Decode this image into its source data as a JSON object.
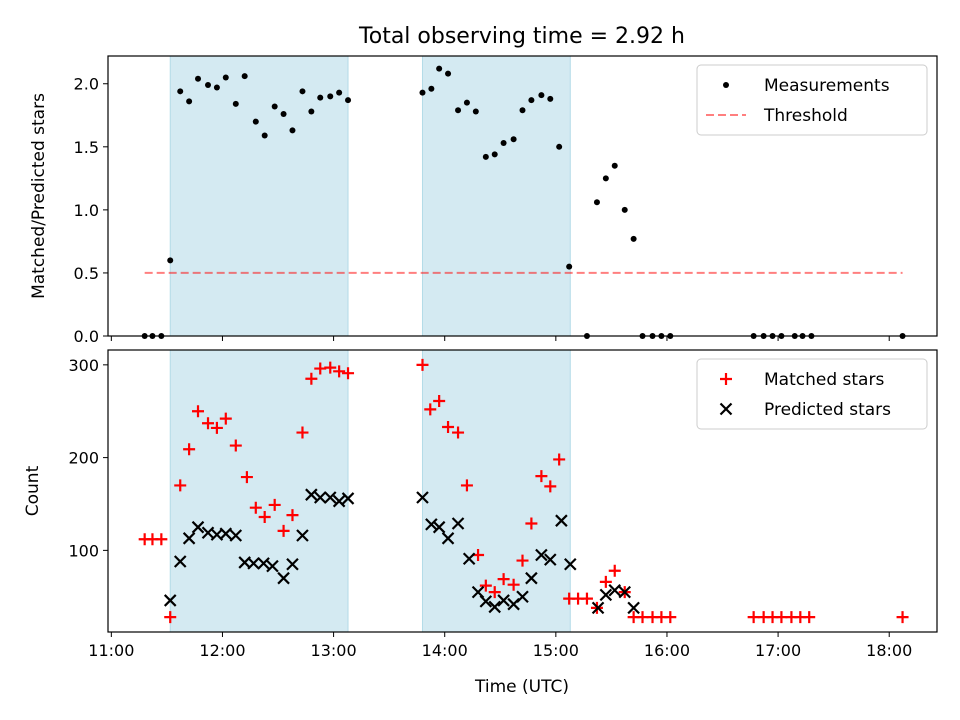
{
  "title": "Total observing time = 2.92 h",
  "xlabel": "Time (UTC)",
  "colors": {
    "span": "#add8e6",
    "measurements": "#000000",
    "threshold": "#ff0000",
    "matched": "#ff0000",
    "predicted": "#000000"
  },
  "chart_data": [
    {
      "type": "scatter",
      "ylabel": "Matched/Predicted stars",
      "ylim": [
        0,
        2.22
      ],
      "yticks": [
        0.0,
        0.5,
        1.0,
        1.5,
        2.0
      ],
      "ytick_labels": [
        "0.0",
        "0.5",
        "1.0",
        "1.5",
        "2.0"
      ],
      "xlim_hours": [
        10.97,
        18.43
      ],
      "xticks_hours": [
        11,
        12,
        13,
        14,
        15,
        16,
        17,
        18
      ],
      "xtick_labels": [
        "11:00",
        "12:00",
        "13:00",
        "14:00",
        "15:00",
        "16:00",
        "17:00",
        "18:00"
      ],
      "show_xtick_labels": false,
      "legend": "upper right",
      "highlight_spans_hours": [
        [
          11.53,
          13.13
        ],
        [
          13.8,
          15.13
        ]
      ],
      "threshold": {
        "name": "Threshold",
        "value": 0.5,
        "x_range_hours": [
          11.3,
          18.12
        ],
        "style": "dashed"
      },
      "series": [
        {
          "name": "Measurements",
          "marker": "dot",
          "x": [
            11.3,
            11.37,
            11.45,
            11.53,
            11.62,
            11.7,
            11.78,
            11.87,
            11.95,
            12.03,
            12.12,
            12.2,
            12.3,
            12.38,
            12.47,
            12.55,
            12.63,
            12.72,
            12.8,
            12.88,
            12.97,
            13.05,
            13.13,
            13.8,
            13.88,
            13.95,
            14.03,
            14.12,
            14.2,
            14.28,
            14.37,
            14.45,
            14.53,
            14.62,
            14.7,
            14.78,
            14.87,
            14.95,
            15.03,
            15.12,
            15.28,
            15.37,
            15.45,
            15.53,
            15.62,
            15.7,
            15.78,
            15.87,
            15.95,
            16.03,
            16.78,
            16.87,
            16.95,
            17.03,
            17.15,
            17.22,
            17.3,
            18.12
          ],
          "y": [
            0,
            0,
            0,
            0.6,
            1.94,
            1.86,
            2.04,
            1.99,
            1.97,
            2.05,
            1.84,
            2.06,
            1.7,
            1.59,
            1.82,
            1.76,
            1.63,
            1.94,
            1.78,
            1.89,
            1.9,
            1.93,
            1.87,
            1.93,
            1.96,
            2.12,
            2.08,
            1.79,
            1.85,
            1.78,
            1.42,
            1.44,
            1.53,
            1.56,
            1.79,
            1.87,
            1.91,
            1.88,
            1.5,
            0.55,
            0,
            1.06,
            1.25,
            1.35,
            1.0,
            0.77,
            0,
            0,
            0,
            0,
            0,
            0,
            0,
            0,
            0,
            0,
            0,
            0
          ]
        }
      ]
    },
    {
      "type": "scatter",
      "ylabel": "Count",
      "ylim": [
        12,
        316
      ],
      "yticks": [
        100,
        200,
        300
      ],
      "ytick_labels": [
        "100",
        "200",
        "300"
      ],
      "xlim_hours": [
        10.97,
        18.43
      ],
      "xticks_hours": [
        11,
        12,
        13,
        14,
        15,
        16,
        17,
        18
      ],
      "xtick_labels": [
        "11:00",
        "12:00",
        "13:00",
        "14:00",
        "15:00",
        "16:00",
        "17:00",
        "18:00"
      ],
      "show_xtick_labels": true,
      "legend": "upper right",
      "highlight_spans_hours": [
        [
          11.53,
          13.13
        ],
        [
          13.8,
          15.13
        ]
      ],
      "series": [
        {
          "name": "Matched stars",
          "marker": "plus",
          "x": [
            11.3,
            11.37,
            11.45,
            11.53,
            11.62,
            11.7,
            11.78,
            11.87,
            11.95,
            12.03,
            12.12,
            12.22,
            12.3,
            12.38,
            12.47,
            12.55,
            12.63,
            12.72,
            12.8,
            12.88,
            12.97,
            13.05,
            13.13,
            13.8,
            13.87,
            13.95,
            14.03,
            14.12,
            14.2,
            14.3,
            14.37,
            14.45,
            14.53,
            14.62,
            14.7,
            14.78,
            14.87,
            14.95,
            15.03,
            15.12,
            15.2,
            15.28,
            15.37,
            15.45,
            15.53,
            15.62,
            15.7,
            15.78,
            15.87,
            15.95,
            16.03,
            16.78,
            16.87,
            16.95,
            17.03,
            17.12,
            17.2,
            17.28,
            18.12
          ],
          "y": [
            112,
            112,
            112,
            28,
            170,
            209,
            250,
            237,
            232,
            242,
            213,
            179,
            146,
            136,
            149,
            121,
            138,
            227,
            285,
            296,
            297,
            293,
            291,
            300,
            252,
            261,
            233,
            227,
            170,
            95,
            62,
            55,
            69,
            63,
            89,
            129,
            180,
            169,
            198,
            48,
            48,
            48,
            38,
            66,
            78,
            55,
            28,
            28,
            28,
            28,
            28,
            28,
            28,
            28,
            28,
            28,
            28,
            28,
            28
          ]
        },
        {
          "name": "Predicted stars",
          "marker": "x",
          "x": [
            11.53,
            11.62,
            11.7,
            11.78,
            11.87,
            11.95,
            12.03,
            12.12,
            12.2,
            12.28,
            12.37,
            12.45,
            12.55,
            12.63,
            12.72,
            12.8,
            12.88,
            12.97,
            13.05,
            13.13,
            13.8,
            13.88,
            13.95,
            14.03,
            14.12,
            14.22,
            14.3,
            14.37,
            14.45,
            14.53,
            14.62,
            14.7,
            14.78,
            14.87,
            14.95,
            15.05,
            15.13,
            15.38,
            15.45,
            15.53,
            15.62,
            15.7
          ],
          "y": [
            46,
            88,
            113,
            125,
            119,
            117,
            118,
            116,
            87,
            86,
            86,
            83,
            70,
            85,
            116,
            160,
            157,
            157,
            153,
            156,
            157,
            128,
            125,
            113,
            129,
            91,
            55,
            45,
            39,
            46,
            42,
            50,
            70,
            95,
            90,
            132,
            85,
            38,
            52,
            57,
            55,
            38
          ]
        }
      ]
    }
  ]
}
